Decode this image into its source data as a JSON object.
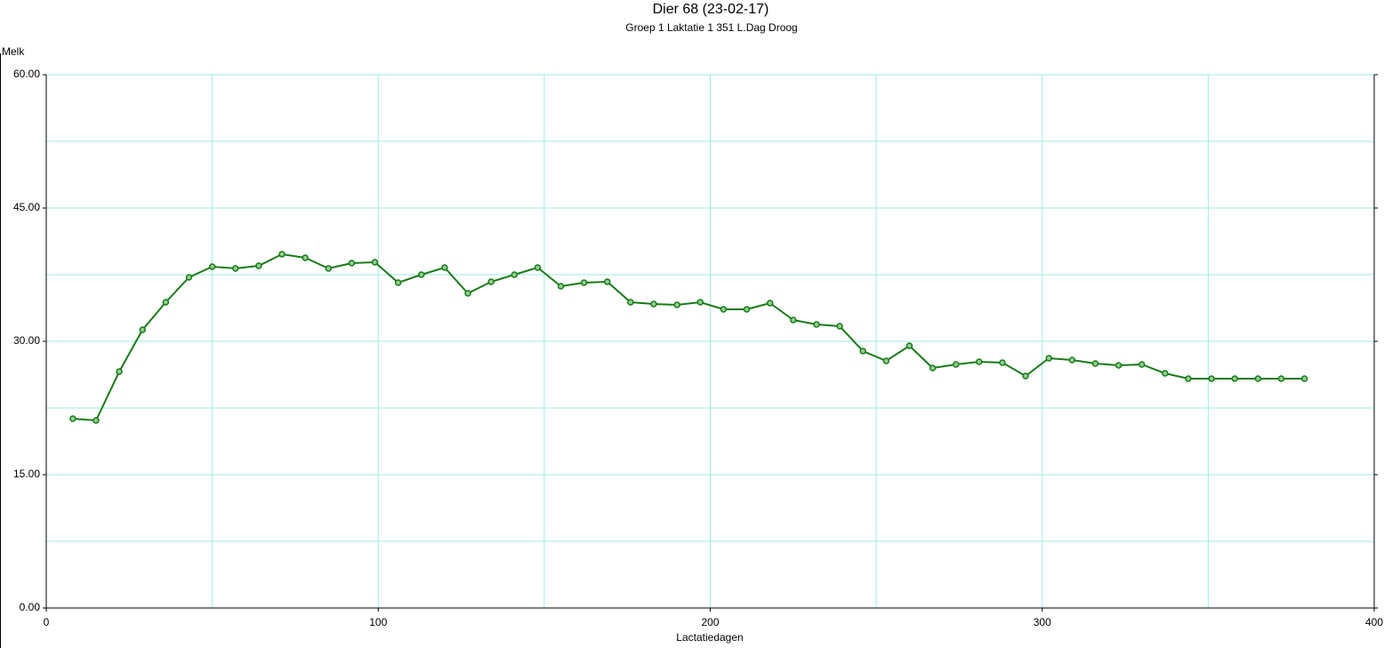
{
  "chart_data": {
    "type": "line",
    "title": "Dier 68  (23-02-17)",
    "subtitle": "Groep  1    Laktatie  1     351 L.Dag   Droog",
    "y_label": "Melk",
    "x_label": "Lactatiedagen",
    "x": [
      8,
      15,
      22,
      29,
      36,
      43,
      50,
      57,
      64,
      71,
      78,
      85,
      92,
      99,
      106,
      113,
      120,
      127,
      134,
      141,
      148,
      155,
      162,
      169,
      176,
      183,
      190,
      197,
      204,
      211,
      218,
      225,
      232,
      239,
      246,
      253,
      260,
      267,
      274,
      281,
      288,
      295,
      302,
      309,
      316,
      323,
      330,
      337,
      344,
      351,
      358,
      365,
      372,
      379
    ],
    "series": [
      {
        "name": "Melk",
        "color": "#1a7a1a",
        "values": [
          21.3,
          21.1,
          26.6,
          31.3,
          34.4,
          37.2,
          38.4,
          38.2,
          38.5,
          39.8,
          39.4,
          38.2,
          38.8,
          38.9,
          36.6,
          37.5,
          38.3,
          35.4,
          36.7,
          37.5,
          38.3,
          36.2,
          36.6,
          36.7,
          34.4,
          34.2,
          34.1,
          34.4,
          33.6,
          33.6,
          34.3,
          32.4,
          31.9,
          31.7,
          28.9,
          27.8,
          29.5,
          27.0,
          27.4,
          27.7,
          27.6,
          26.1,
          28.1,
          27.9,
          27.5,
          27.3,
          27.4,
          26.4,
          25.8,
          25.8,
          25.8,
          25.8,
          25.8,
          25.8
        ]
      }
    ],
    "xlim": [
      0,
      400
    ],
    "xticks": [
      0,
      100,
      200,
      300,
      400
    ],
    "x_minor_grid": [
      50,
      150,
      250,
      350
    ],
    "ylim": [
      0,
      60
    ],
    "yticks": [
      {
        "value": 0,
        "label": "0.00"
      },
      {
        "value": 15,
        "label": "15.00"
      },
      {
        "value": 30,
        "label": "30.00"
      },
      {
        "value": 45,
        "label": "45.00"
      },
      {
        "value": 60,
        "label": "60.00"
      }
    ],
    "y_minor_grid": [
      7.5,
      22.5,
      37.5,
      52.5
    ],
    "grid": true,
    "grid_color": "#9eeaea"
  }
}
